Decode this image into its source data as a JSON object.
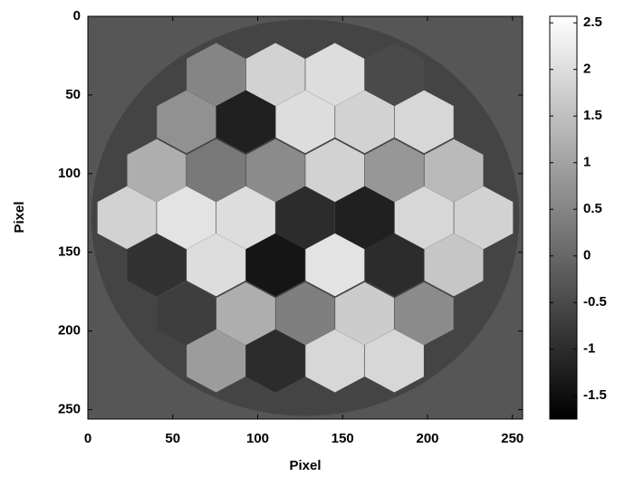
{
  "chart_data": {
    "type": "heatmap",
    "xlabel": "Pixel",
    "ylabel": "Pixel",
    "xlim": [
      0,
      256
    ],
    "ylim": [
      0,
      256
    ],
    "y_inverted": true,
    "xticks": [
      0,
      50,
      100,
      150,
      200,
      250
    ],
    "yticks": [
      0,
      50,
      100,
      150,
      200,
      250
    ],
    "colormap": "gray",
    "clim": [
      -1.75,
      2.57
    ],
    "cticks": [
      -1.5,
      -1,
      -0.5,
      0,
      0.5,
      1,
      1.5,
      2,
      2.5
    ],
    "background_value": -0.3,
    "disk": {
      "x": 128,
      "y": 128,
      "r": 126,
      "value": -0.6
    },
    "cells": [
      {
        "x": 75.5,
        "y": 37,
        "value": 0.5
      },
      {
        "x": 110.5,
        "y": 37,
        "value": 1.8
      },
      {
        "x": 145.5,
        "y": 37,
        "value": 2.0
      },
      {
        "x": 180.5,
        "y": 37,
        "value": -0.5
      },
      {
        "x": 58,
        "y": 67,
        "value": 0.7
      },
      {
        "x": 93,
        "y": 67,
        "value": -1.2
      },
      {
        "x": 128,
        "y": 67,
        "value": 2.0
      },
      {
        "x": 163,
        "y": 67,
        "value": 1.8
      },
      {
        "x": 198,
        "y": 67,
        "value": 1.9
      },
      {
        "x": 40.5,
        "y": 98,
        "value": 1.2
      },
      {
        "x": 75.5,
        "y": 98,
        "value": 0.3
      },
      {
        "x": 110.5,
        "y": 98,
        "value": 0.6
      },
      {
        "x": 145.5,
        "y": 98,
        "value": 1.8
      },
      {
        "x": 180.5,
        "y": 98,
        "value": 0.8
      },
      {
        "x": 215.5,
        "y": 98,
        "value": 1.4
      },
      {
        "x": 23,
        "y": 128,
        "value": 1.8
      },
      {
        "x": 58,
        "y": 128,
        "value": 2.1
      },
      {
        "x": 93,
        "y": 128,
        "value": 2.0
      },
      {
        "x": 128,
        "y": 128,
        "value": -1.0
      },
      {
        "x": 163,
        "y": 128,
        "value": -1.2
      },
      {
        "x": 198,
        "y": 128,
        "value": 1.9
      },
      {
        "x": 233,
        "y": 128,
        "value": 1.8
      },
      {
        "x": 40.5,
        "y": 158,
        "value": -0.9
      },
      {
        "x": 75.5,
        "y": 158,
        "value": 2.0
      },
      {
        "x": 110.5,
        "y": 158,
        "value": -1.4
      },
      {
        "x": 145.5,
        "y": 158,
        "value": 2.1
      },
      {
        "x": 180.5,
        "y": 158,
        "value": -1.0
      },
      {
        "x": 215.5,
        "y": 158,
        "value": 1.6
      },
      {
        "x": 58,
        "y": 189,
        "value": -0.7
      },
      {
        "x": 93,
        "y": 189,
        "value": 1.2
      },
      {
        "x": 128,
        "y": 189,
        "value": 0.4
      },
      {
        "x": 163,
        "y": 189,
        "value": 1.7
      },
      {
        "x": 198,
        "y": 189,
        "value": 0.6
      },
      {
        "x": 75.5,
        "y": 219,
        "value": 0.9
      },
      {
        "x": 110.5,
        "y": 219,
        "value": -1.0
      },
      {
        "x": 145.5,
        "y": 219,
        "value": 1.9
      },
      {
        "x": 180.5,
        "y": 219,
        "value": 1.9
      }
    ]
  }
}
